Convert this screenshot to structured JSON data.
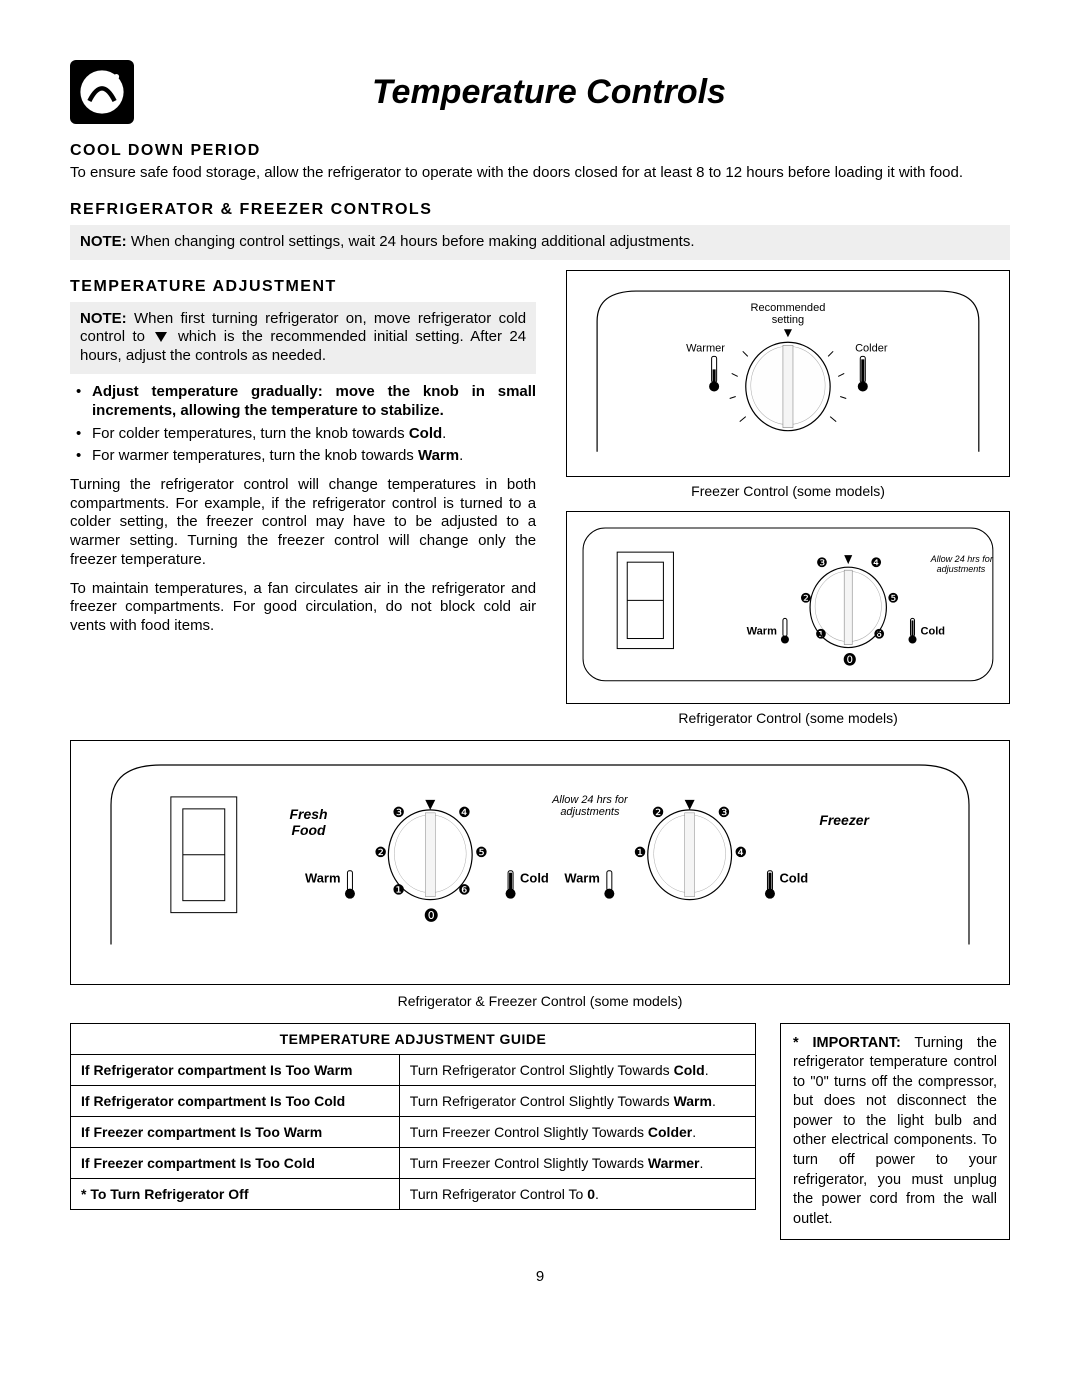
{
  "page_title": "Temperature Controls",
  "page_number": "9",
  "sections": {
    "cooldown": {
      "heading": "COOL DOWN PERIOD",
      "text": "To ensure safe food storage, allow the refrigerator to operate with the doors closed for at least 8 to 12 hours before loading it with food."
    },
    "controls": {
      "heading": "REFRIGERATOR & FREEZER CONTROLS",
      "note_label": "NOTE:",
      "note_text": "When changing control settings, wait 24 hours before making additional adjustments."
    },
    "adjustment": {
      "heading": "TEMPERATURE ADJUSTMENT",
      "note_label": "NOTE:",
      "note_pre": "When first turning refrigerator on, move refrigerator cold control to",
      "note_post": "which is the recommended initial setting. After 24 hours, adjust the controls as needed.",
      "bullets": [
        {
          "text": "Adjust temperature gradually: move the knob in small increments, allowing the temperature to stabilize.",
          "bold": true
        },
        {
          "text_pre": "For colder temperatures, turn the knob towards ",
          "bold_word": "Cold",
          "text_post": "."
        },
        {
          "text_pre": "For warmer temperatures, turn the knob towards ",
          "bold_word": "Warm",
          "text_post": "."
        }
      ],
      "para1": "Turning the refrigerator control will change temperatures in both compartments. For example, if the refrigerator control is turned to a colder setting, the freezer control may have to be adjusted to a warmer setting. Turning the freezer control will change only the freezer temperature.",
      "para2": "To maintain temperatures, a fan circulates air in the refrigerator and freezer compartments. For good circulation, do not block cold air vents with food items."
    }
  },
  "figures": {
    "freezer_dial": {
      "caption": "Freezer Control (some models)",
      "top_label": "Recommended\nsetting",
      "left_label": "Warmer",
      "right_label": "Colder"
    },
    "fridge_dial": {
      "caption": "Refrigerator Control (some models)",
      "warm_label": "Warm",
      "cold_label": "Cold",
      "hint": "Allow 24 hrs for\nadjustments",
      "numbers": [
        "❶",
        "❷",
        "❸",
        "❹",
        "❺",
        "❻",
        "⓿"
      ]
    },
    "combo": {
      "caption": "Refrigerator & Freezer Control (some models)",
      "left_title": "Fresh\nFood",
      "right_title": "Freezer",
      "warm_label": "Warm",
      "cold_label": "Cold",
      "hint": "Allow 24 hrs for\nadjustments"
    }
  },
  "guide_table": {
    "title": "TEMPERATURE ADJUSTMENT GUIDE",
    "rows": [
      {
        "cond": "If Refrigerator compartment Is Too Warm",
        "action_pre": "Turn Refrigerator Control Slightly Towards ",
        "bold": "Cold",
        "action_post": "."
      },
      {
        "cond": "If Refrigerator compartment Is Too Cold",
        "action_pre": "Turn Refrigerator Control Slightly Towards ",
        "bold": "Warm",
        "action_post": "."
      },
      {
        "cond": "If Freezer compartment Is Too Warm",
        "action_pre": "Turn Freezer Control Slightly Towards ",
        "bold": "Colder",
        "action_post": "."
      },
      {
        "cond": "If Freezer compartment Is Too Cold",
        "action_pre": "Turn Freezer Control Slightly Towards ",
        "bold": "Warmer",
        "action_post": "."
      },
      {
        "cond": "* To Turn Refrigerator Off",
        "action_pre": "Turn Refrigerator Control To ",
        "bold": "0",
        "action_post": "."
      }
    ]
  },
  "important_box": {
    "label": "* IMPORTANT:",
    "text": "Turning the refrigerator temperature control to \"0\" turns off the compressor, but does not disconnect the power to the light bulb and other electrical components. To turn off power to your refrigerator, you must unplug the power cord from the wall outlet."
  },
  "colors": {
    "note_bg": "#eeeeee",
    "border": "#000000",
    "text": "#000000"
  }
}
